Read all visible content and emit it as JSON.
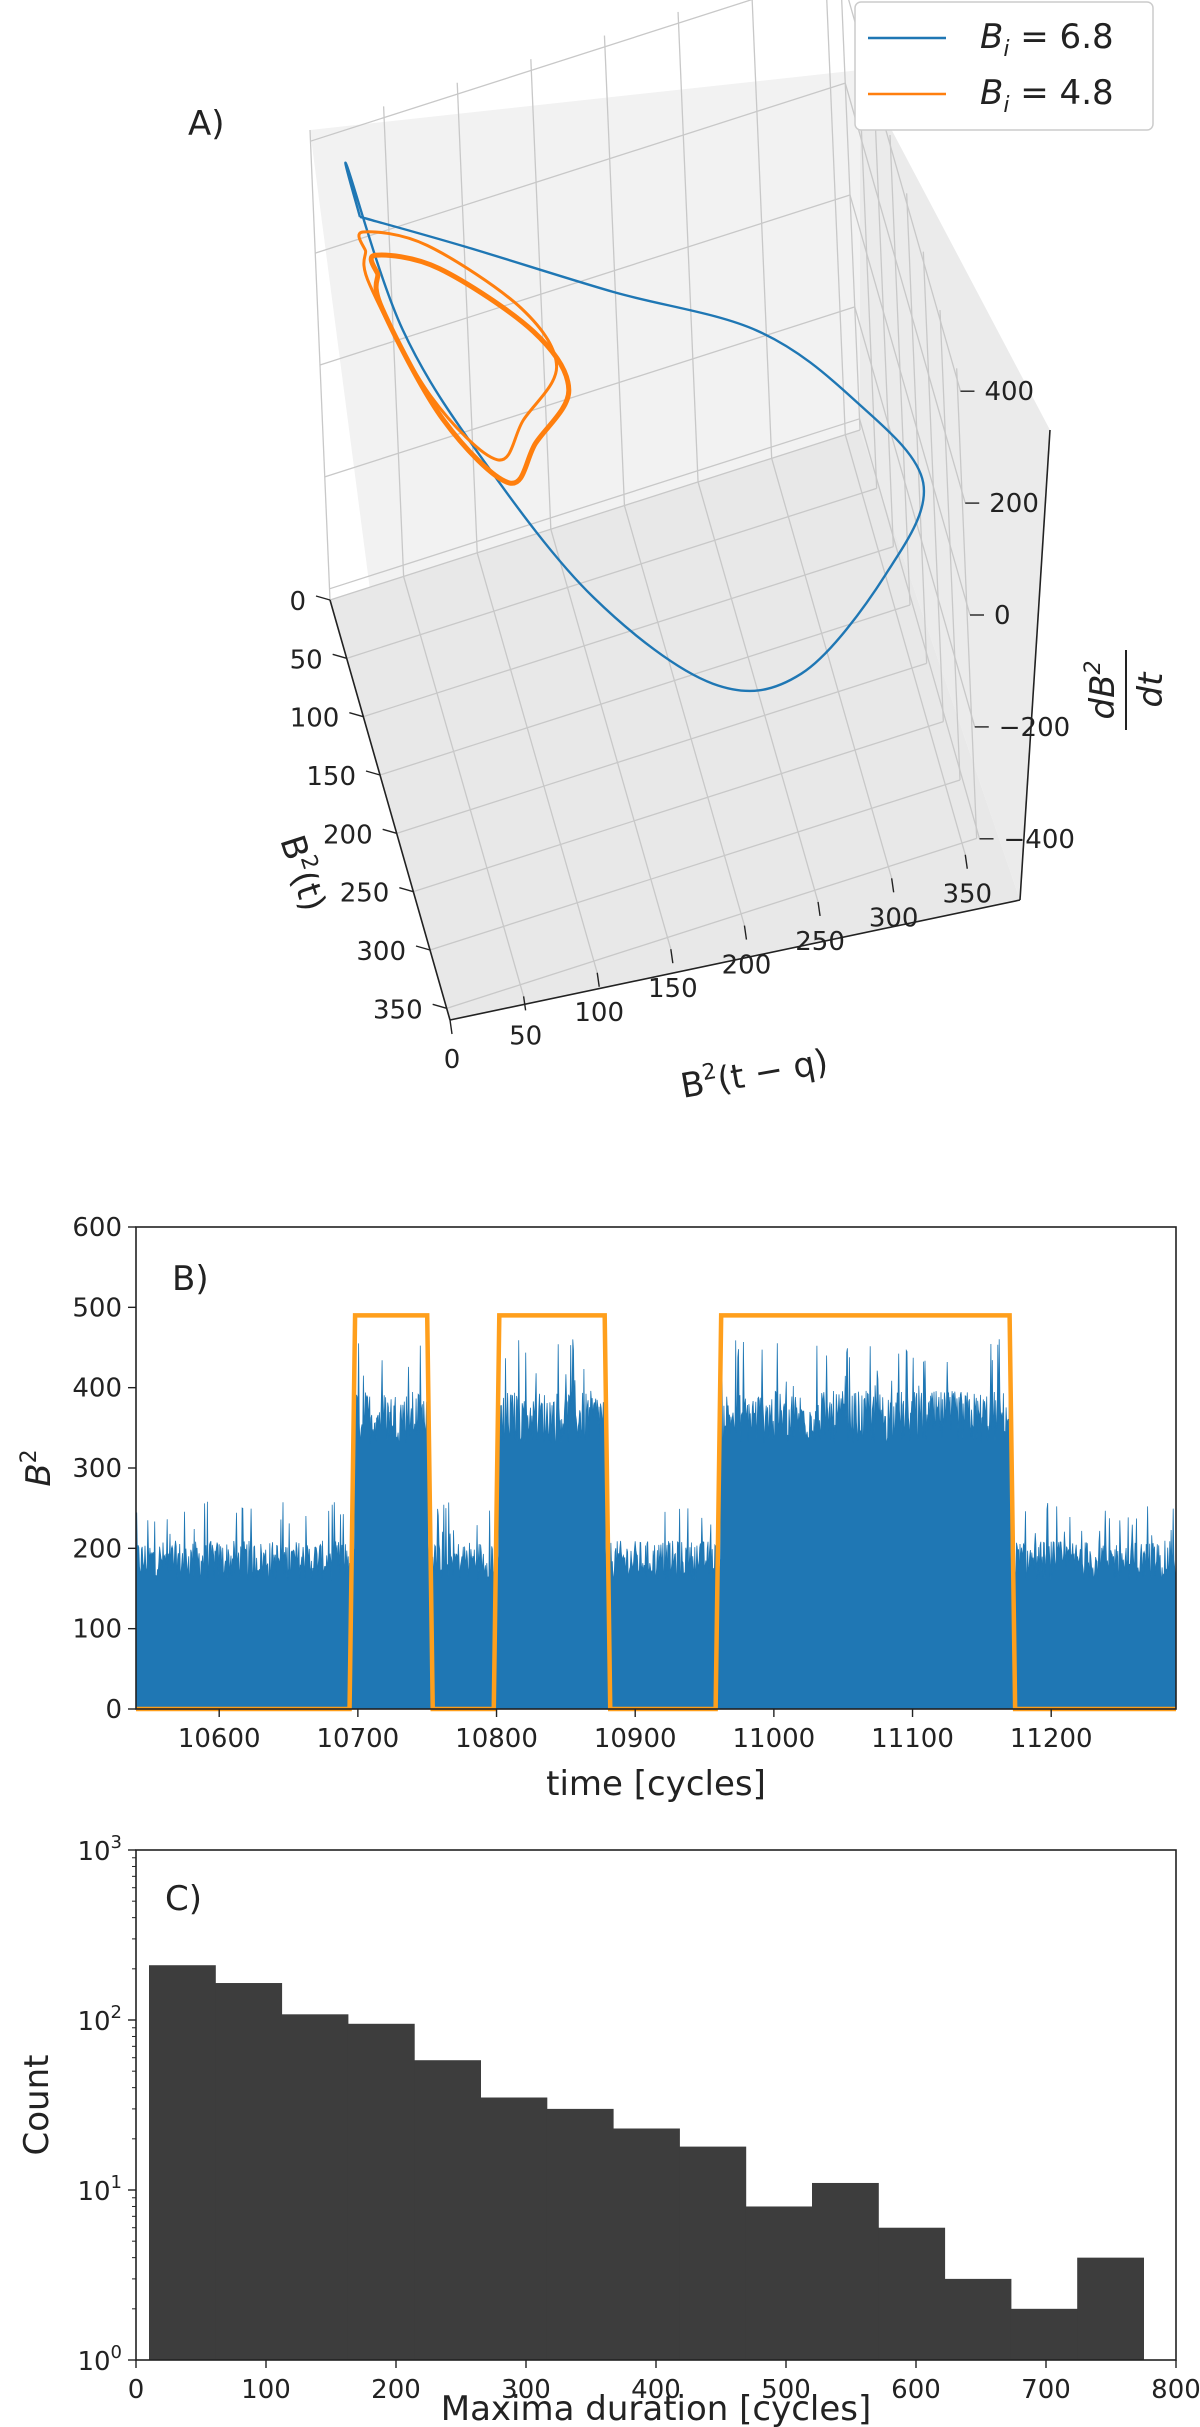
{
  "chart_data": [
    {
      "type": "line",
      "projection": "3d",
      "panel_label": "A)",
      "xlabel_parts": {
        "base": "B",
        "sup": "2",
        "rest": "(t)"
      },
      "ylabel_parts": {
        "base": "B",
        "sup": "2",
        "rest": "(t − q)"
      },
      "zlabel_parts": {
        "num": "dB",
        "num_sup": "2",
        "den": "dt"
      },
      "x_ticks": [
        "0",
        "50",
        "100",
        "150",
        "200",
        "250",
        "300",
        "350"
      ],
      "y_ticks": [
        "0",
        "50",
        "100",
        "150",
        "200",
        "250",
        "300",
        "350"
      ],
      "z_ticks": [
        "400",
        "200",
        "0",
        "−200",
        "−400"
      ],
      "xlim": [
        0,
        360
      ],
      "ylim": [
        0,
        360
      ],
      "zlim": [
        -420,
        420
      ],
      "legend_position": "top-right",
      "grid": true,
      "series": [
        {
          "legend_parts": {
            "sym": "B",
            "sub": "i",
            "rest": " = 6.8"
          },
          "color": "#1f77b4",
          "comment_shape": "single large closed orbit",
          "points": [
            [
              5,
              30,
              250
            ],
            [
              20,
              20,
              380
            ],
            [
              60,
              45,
              150
            ],
            [
              90,
              90,
              -60
            ],
            [
              140,
              150,
              -250
            ],
            [
              180,
              220,
              -380
            ],
            [
              230,
              270,
              -300
            ],
            [
              280,
              320,
              -60
            ],
            [
              320,
              340,
              170
            ],
            [
              300,
              300,
              310
            ],
            [
              230,
              250,
              330
            ],
            [
              150,
              170,
              300
            ],
            [
              60,
              90,
              260
            ],
            [
              5,
              30,
              250
            ]
          ]
        },
        {
          "legend_parts": {
            "sym": "B",
            "sub": "i",
            "rest": " = 4.8"
          },
          "color": "#ff7f0e",
          "comment_shape": "double loop orbit",
          "points": [
            [
              20,
              30,
              220
            ],
            [
              40,
              25,
              300
            ],
            [
              80,
              60,
              330
            ],
            [
              140,
              110,
              300
            ],
            [
              150,
              130,
              200
            ],
            [
              130,
              110,
              80
            ],
            [
              110,
              95,
              -20
            ],
            [
              70,
              60,
              40
            ],
            [
              30,
              30,
              180
            ],
            [
              20,
              30,
              220
            ]
          ]
        }
      ]
    },
    {
      "type": "line",
      "panel_label": "B)",
      "xlabel": "time [cycles]",
      "ylabel_parts": {
        "base": "B",
        "sup": "2"
      },
      "xlim": [
        10540,
        11290
      ],
      "ylim": [
        0,
        600
      ],
      "x_ticks": [
        10600,
        10700,
        10800,
        10900,
        11000,
        11100,
        11200
      ],
      "y_ticks": [
        0,
        100,
        200,
        300,
        400,
        500,
        600
      ],
      "grid": false,
      "series": [
        {
          "color": "#1f77b4",
          "style": "dense oscillation filled from 0",
          "low_state_range": [
            160,
            250
          ],
          "high_state_range": [
            330,
            450
          ],
          "high_intervals": [
            [
              10698,
              10750
            ],
            [
              10802,
              10878
            ],
            [
              10962,
              11170
            ]
          ]
        },
        {
          "color": "#ff9f1c",
          "style": "indicator step",
          "level_high": 490,
          "level_low": 0,
          "intervals": [
            [
              10694,
              10754
            ],
            [
              10798,
              10882
            ],
            [
              10958,
              11174
            ]
          ]
        }
      ]
    },
    {
      "type": "bar",
      "subtype": "histogram",
      "panel_label": "C)",
      "xlabel": "Maxima duration [cycles]",
      "ylabel": "Count",
      "yscale": "log",
      "xlim": [
        0,
        800
      ],
      "ylim": [
        1,
        1000
      ],
      "x_ticks": [
        0,
        100,
        200,
        300,
        400,
        500,
        600,
        700,
        800
      ],
      "y_ticks": [
        {
          "base": "10",
          "exp": "0"
        },
        {
          "base": "10",
          "exp": "1"
        },
        {
          "base": "10",
          "exp": "2"
        },
        {
          "base": "10",
          "exp": "3"
        }
      ],
      "bin_edges": [
        10,
        61,
        112,
        163,
        214,
        265,
        316,
        367,
        418,
        469,
        520,
        571,
        622,
        673,
        724,
        775
      ],
      "values": [
        210,
        165,
        108,
        95,
        58,
        35,
        30,
        23,
        18,
        8,
        11,
        6,
        3,
        2,
        4
      ],
      "color": "#3d3d3d"
    }
  ]
}
